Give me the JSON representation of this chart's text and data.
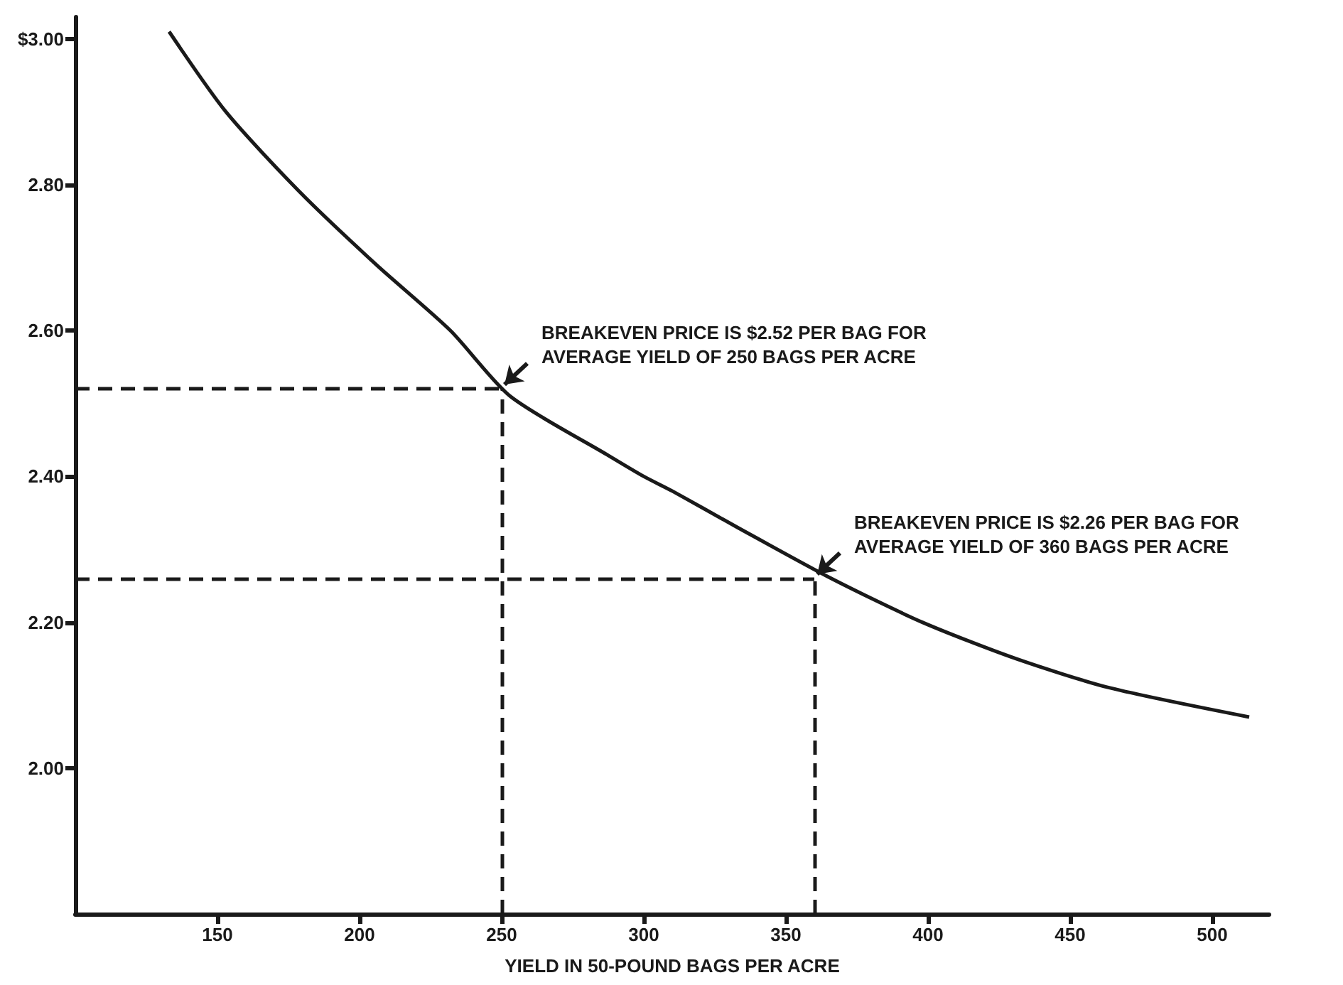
{
  "chart_data": {
    "type": "line",
    "xlabel": "YIELD IN 50-POUND BAGS PER ACRE",
    "x": [
      133,
      153,
      179,
      206,
      232,
      253,
      287,
      300,
      310,
      333,
      366,
      398,
      431,
      464,
      513
    ],
    "series": [
      {
        "color": "#1a1a1a",
        "values": [
          3.01,
          2.9,
          2.79,
          2.69,
          2.6,
          2.51,
          2.43,
          2.4,
          2.38,
          2.33,
          2.26,
          2.2,
          2.15,
          2.11,
          2.07
        ]
      }
    ],
    "xlim": [
      100,
      520
    ],
    "xticks": [
      150,
      200,
      250,
      300,
      350,
      400,
      450,
      500
    ],
    "ylim": [
      1.8,
      3.03
    ],
    "yticks": [
      {
        "value": 2.0,
        "label": "2.00"
      },
      {
        "value": 2.2,
        "label": "2.20"
      },
      {
        "value": 2.4,
        "label": "2.40"
      },
      {
        "value": 2.6,
        "label": "2.60"
      },
      {
        "value": 2.8,
        "label": "2.80"
      },
      {
        "value": 3.0,
        "label": "$3.00"
      }
    ],
    "ref_lines": [
      {
        "axis": "y",
        "value": 2.52,
        "line_style": "dashed",
        "color": "#1a1a1a"
      },
      {
        "axis": "x",
        "value": 250,
        "line_style": "dashed",
        "color": "#1a1a1a"
      },
      {
        "axis": "y",
        "value": 2.26,
        "line_style": "dashed",
        "color": "#1a1a1a"
      },
      {
        "axis": "x",
        "value": 360,
        "line_style": "dashed",
        "color": "#1a1a1a"
      }
    ],
    "annotations": [
      {
        "text": "BREAKEVEN PRICE IS $2.52 PER BAG FOR\nAVERAGE YIELD OF 250 BAGS PER ACRE",
        "x": 250,
        "y": 2.52
      },
      {
        "text": "BREAKEVEN PRICE IS $2.26 PER BAG FOR\nAVERAGE YIELD OF 360 BAGS PER ACRE",
        "x": 360,
        "y": 2.26
      }
    ],
    "marker": "none",
    "line_style": "solid"
  }
}
